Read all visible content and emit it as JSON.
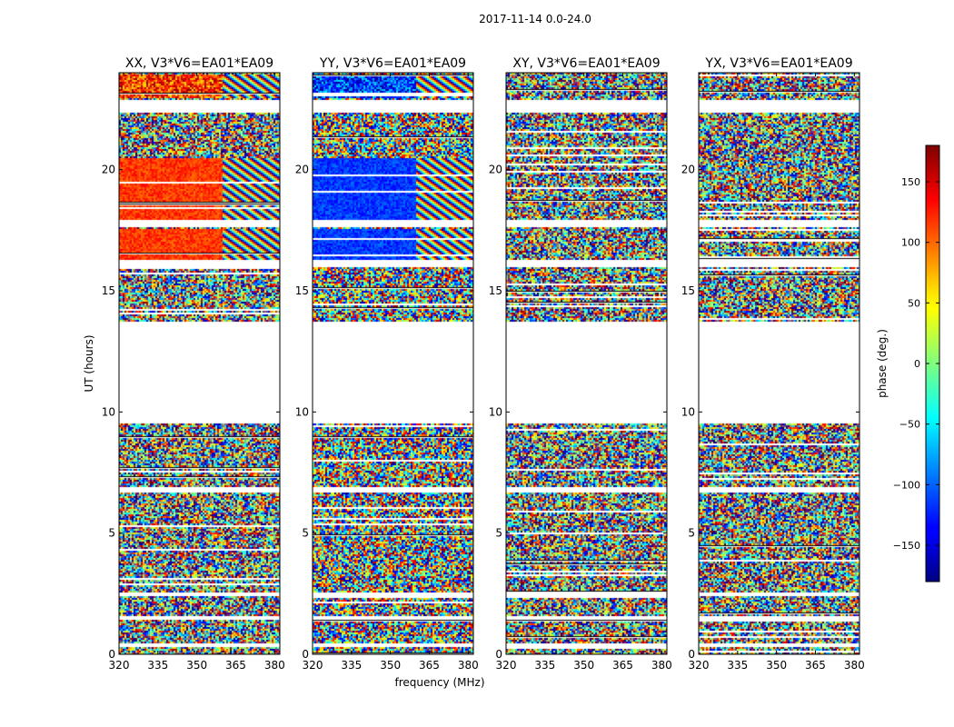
{
  "suptitle": "2017-11-14 0.0-24.0",
  "chart_data": {
    "type": "heatmap",
    "xlabel": "frequency (MHz)",
    "ylabel": "UT (hours)",
    "xlim": [
      320,
      382
    ],
    "ylim": [
      0,
      24
    ],
    "xticks": [
      320,
      335,
      350,
      365,
      380
    ],
    "yticks": [
      0,
      5,
      10,
      15,
      20
    ],
    "panels": [
      {
        "title": "XX, V3*V6=EA01*EA09",
        "pol": "XX"
      },
      {
        "title": "YY, V3*V6=EA01*EA09",
        "pol": "YY"
      },
      {
        "title": "XY, V3*V6=EA01*EA09",
        "pol": "XY"
      },
      {
        "title": "YX, V3*V6=EA01*EA09",
        "pol": "YX"
      }
    ],
    "colorbar": {
      "label": "phase (deg.)",
      "range": [
        -180,
        180
      ],
      "ticks": [
        150,
        100,
        50,
        0,
        -50,
        -100,
        -150
      ],
      "tick_labels": [
        "150",
        "100",
        "50",
        "0",
        "−50",
        "−100",
        "−150"
      ],
      "colormap": "jet"
    },
    "data_gaps_hours": [
      [
        9.6,
        13.8
      ],
      [
        17.65,
        18.0
      ],
      [
        22.4,
        22.95
      ],
      [
        16.0,
        16.3
      ],
      [
        1.45,
        1.6
      ],
      [
        0.35,
        0.48
      ],
      [
        6.75,
        6.9
      ],
      [
        2.45,
        2.55
      ]
    ]
  }
}
